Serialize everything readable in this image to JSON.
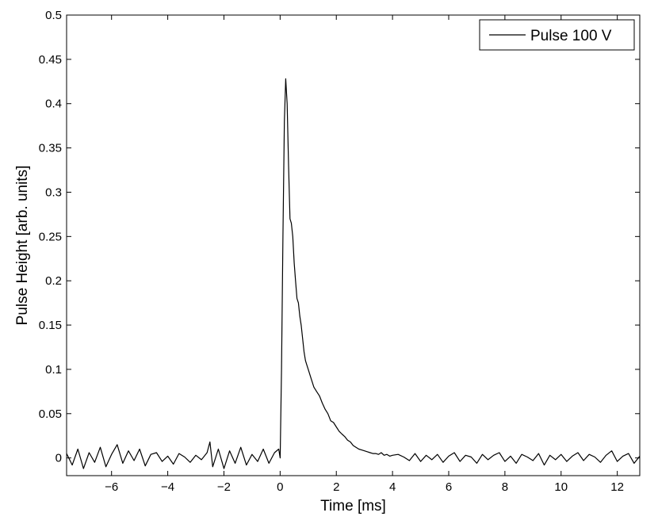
{
  "chart_data": {
    "type": "line",
    "title": "",
    "xlabel": "Time [ms]",
    "ylabel": "Pulse Height [arb. units]",
    "xlim": [
      -7.6,
      12.8
    ],
    "ylim": [
      -0.02,
      0.5
    ],
    "xticks": [
      -6,
      -4,
      -2,
      0,
      2,
      4,
      6,
      8,
      10,
      12
    ],
    "xtick_labels": [
      "−6",
      "−4",
      "−2",
      "0",
      "2",
      "4",
      "6",
      "8",
      "10",
      "12"
    ],
    "yticks": [
      0,
      0.05,
      0.1,
      0.15,
      0.2,
      0.25,
      0.3,
      0.35,
      0.4,
      0.45,
      0.5
    ],
    "ytick_labels": [
      "0",
      "0.05",
      "0.1",
      "0.15",
      "0.2",
      "0.25",
      "0.3",
      "0.35",
      "0.4",
      "0.45",
      "0.5"
    ],
    "grid": false,
    "box": true,
    "legend_position": "top-right",
    "series": [
      {
        "name": "Pulse 100 V",
        "color": "#000000",
        "x": [
          -7.6,
          -7.4,
          -7.2,
          -7.0,
          -6.8,
          -6.6,
          -6.4,
          -6.2,
          -6.0,
          -5.8,
          -5.6,
          -5.4,
          -5.2,
          -5.0,
          -4.8,
          -4.6,
          -4.4,
          -4.2,
          -4.0,
          -3.8,
          -3.6,
          -3.4,
          -3.2,
          -3.0,
          -2.8,
          -2.6,
          -2.5,
          -2.4,
          -2.2,
          -2.0,
          -1.8,
          -1.6,
          -1.4,
          -1.2,
          -1.0,
          -0.8,
          -0.6,
          -0.4,
          -0.2,
          -0.05,
          0.0,
          0.05,
          0.1,
          0.15,
          0.2,
          0.25,
          0.3,
          0.35,
          0.4,
          0.45,
          0.5,
          0.55,
          0.6,
          0.65,
          0.7,
          0.75,
          0.8,
          0.85,
          0.9,
          0.95,
          1.0,
          1.1,
          1.2,
          1.3,
          1.4,
          1.5,
          1.6,
          1.7,
          1.8,
          1.9,
          2.0,
          2.1,
          2.2,
          2.3,
          2.4,
          2.5,
          2.6,
          2.7,
          2.8,
          2.9,
          3.0,
          3.1,
          3.2,
          3.3,
          3.4,
          3.5,
          3.6,
          3.7,
          3.8,
          3.9,
          4.0,
          4.2,
          4.4,
          4.6,
          4.8,
          5.0,
          5.2,
          5.4,
          5.6,
          5.8,
          6.0,
          6.2,
          6.4,
          6.6,
          6.8,
          7.0,
          7.2,
          7.4,
          7.6,
          7.8,
          8.0,
          8.2,
          8.4,
          8.6,
          8.8,
          9.0,
          9.2,
          9.4,
          9.6,
          9.8,
          10.0,
          10.2,
          10.4,
          10.6,
          10.8,
          11.0,
          11.2,
          11.4,
          11.6,
          11.8,
          12.0,
          12.2,
          12.4,
          12.6,
          12.8
        ],
        "y": [
          0.005,
          -0.008,
          0.01,
          -0.012,
          0.006,
          -0.005,
          0.012,
          -0.01,
          0.004,
          0.015,
          -0.006,
          0.008,
          -0.003,
          0.01,
          -0.009,
          0.004,
          0.006,
          -0.004,
          0.002,
          -0.007,
          0.005,
          0.001,
          -0.005,
          0.003,
          -0.002,
          0.006,
          0.018,
          -0.01,
          0.01,
          -0.012,
          0.008,
          -0.006,
          0.012,
          -0.008,
          0.004,
          -0.004,
          0.01,
          -0.006,
          0.006,
          0.01,
          0.0,
          0.1,
          0.25,
          0.38,
          0.428,
          0.4,
          0.33,
          0.27,
          0.265,
          0.25,
          0.22,
          0.2,
          0.18,
          0.175,
          0.16,
          0.15,
          0.135,
          0.12,
          0.11,
          0.105,
          0.1,
          0.09,
          0.08,
          0.075,
          0.07,
          0.062,
          0.055,
          0.05,
          0.042,
          0.04,
          0.035,
          0.03,
          0.027,
          0.024,
          0.02,
          0.018,
          0.014,
          0.012,
          0.01,
          0.009,
          0.008,
          0.007,
          0.006,
          0.005,
          0.005,
          0.004,
          0.006,
          0.003,
          0.004,
          0.002,
          0.003,
          0.004,
          0.001,
          -0.003,
          0.005,
          -0.004,
          0.003,
          -0.002,
          0.004,
          -0.005,
          0.002,
          0.006,
          -0.004,
          0.003,
          0.001,
          -0.006,
          0.004,
          -0.002,
          0.003,
          0.006,
          -0.004,
          0.002,
          -0.006,
          0.004,
          0.001,
          -0.003,
          0.005,
          -0.008,
          0.003,
          -0.002,
          0.004,
          -0.004,
          0.002,
          0.006,
          -0.003,
          0.004,
          0.001,
          -0.005,
          0.003,
          0.008,
          -0.004,
          0.002,
          0.005,
          -0.006,
          0.002
        ]
      }
    ]
  }
}
